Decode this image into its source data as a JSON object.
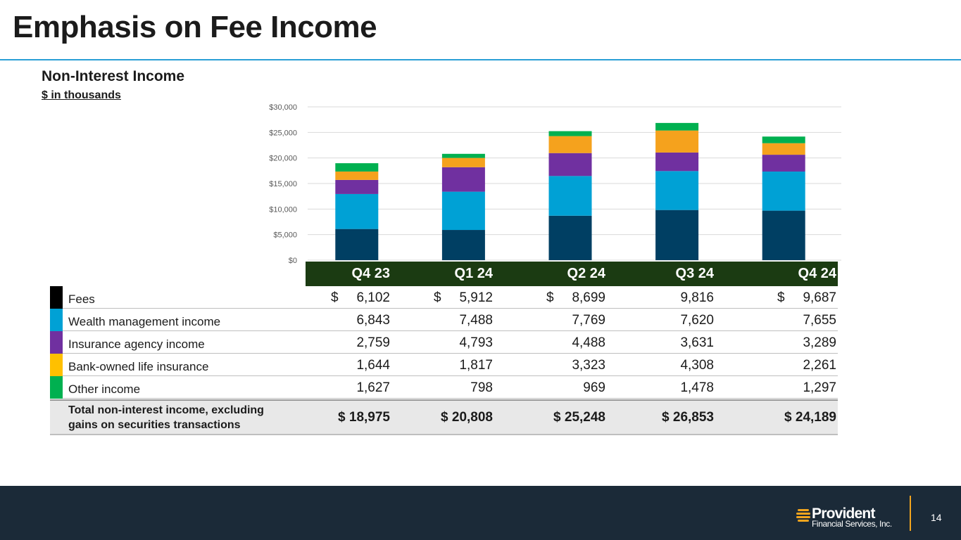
{
  "slide": {
    "title": "Emphasis on Fee Income",
    "subtitle": "Non-Interest Income",
    "unit_note": "$ in thousands",
    "page_number": "14"
  },
  "logo": {
    "name": "Provident",
    "sub": "Financial Services, Inc.",
    "accent_color": "#f2a51e"
  },
  "chart_data": {
    "type": "bar",
    "stacked": true,
    "categories": [
      "Q4 23",
      "Q1 24",
      "Q2 24",
      "Q3 24",
      "Q4 24"
    ],
    "series": [
      {
        "name": "Fees",
        "color": "#003f63",
        "values": [
          6102,
          5912,
          8699,
          9816,
          9687
        ]
      },
      {
        "name": "Wealth management income",
        "color": "#00a1d5",
        "values": [
          6843,
          7488,
          7769,
          7620,
          7655
        ]
      },
      {
        "name": "Insurance agency income",
        "color": "#7030a0",
        "values": [
          2759,
          4793,
          4488,
          3631,
          3289
        ]
      },
      {
        "name": "Bank-owned life insurance",
        "color": "#f5a21d",
        "values": [
          1644,
          1817,
          3323,
          4308,
          2261
        ]
      },
      {
        "name": "Other income",
        "color": "#00b050",
        "values": [
          1627,
          798,
          969,
          1478,
          1297
        ]
      }
    ],
    "ylim": [
      0,
      30000
    ],
    "yticks": [
      "$0",
      "$5,000",
      "$10,000",
      "$15,000",
      "$20,000",
      "$25,000",
      "$30,000"
    ],
    "grid": true
  },
  "table": {
    "headers": [
      "Q4 23",
      "Q1 24",
      "Q2 24",
      "Q3 24",
      "Q4 24"
    ],
    "dollar_sign": "$",
    "rows": [
      {
        "label": "Fees",
        "swatch": "#000000",
        "cells": [
          "6,102",
          "5,912",
          "8,699",
          "9,816",
          "9,687"
        ]
      },
      {
        "label": "Wealth management income",
        "swatch": "#00a1d5",
        "cells": [
          "6,843",
          "7,488",
          "7,769",
          "7,620",
          "7,655"
        ]
      },
      {
        "label": "Insurance agency income",
        "swatch": "#7030a0",
        "cells": [
          "2,759",
          "4,793",
          "4,488",
          "3,631",
          "3,289"
        ]
      },
      {
        "label": "Bank-owned life insurance",
        "swatch": "#ffc000",
        "cells": [
          "1,644",
          "1,817",
          "3,323",
          "4,308",
          "2,261"
        ]
      },
      {
        "label": "Other income",
        "swatch": "#00b050",
        "cells": [
          "1,627",
          "798",
          "969",
          "1,478",
          "1,297"
        ]
      }
    ],
    "total": {
      "label": "Total non-interest income, excluding gains on securities transactions",
      "cells": [
        "$ 18,975",
        "$ 20,808",
        "$ 25,248",
        "$ 26,853",
        "$ 24,189"
      ]
    }
  }
}
